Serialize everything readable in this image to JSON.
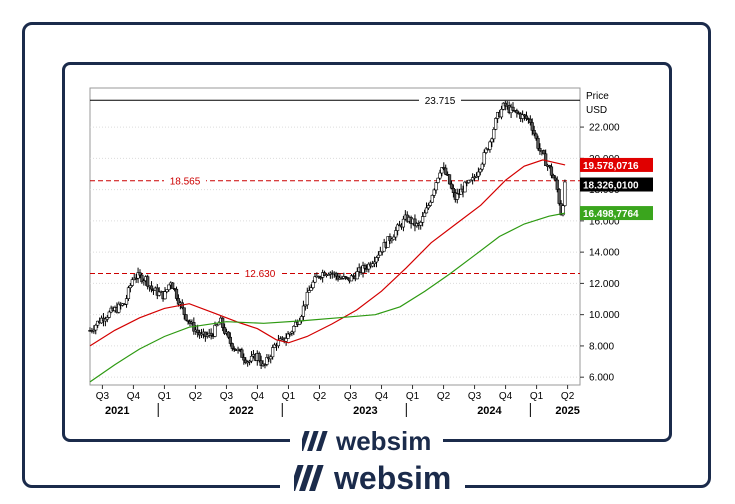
{
  "brand": {
    "logo_text": "websim"
  },
  "chart_data": {
    "type": "candlestick",
    "price_label": "Price",
    "currency_label": "USD",
    "ylim": [
      5.5,
      24.5
    ],
    "y_ticks": [
      "6.000",
      "8.000",
      "10.000",
      "12.000",
      "14.000",
      "16.000",
      "18.000",
      "20.000",
      "22.000"
    ],
    "x_quarters": [
      "Q3",
      "Q4",
      "Q1",
      "Q2",
      "Q3",
      "Q4",
      "Q1",
      "Q2",
      "Q3",
      "Q4",
      "Q1",
      "Q2",
      "Q3",
      "Q4",
      "Q1",
      "Q2"
    ],
    "x_years": [
      "2021",
      "2022",
      "2023",
      "2024",
      "2025"
    ],
    "x_start": 2021.5,
    "x_end": 2025.45,
    "horizontal_lines": [
      {
        "value": 23.715,
        "label": "23.715",
        "style": "solid",
        "color": "#000000"
      },
      {
        "value": 18.565,
        "label": "18.565",
        "style": "dashed",
        "color": "#cc0000"
      },
      {
        "value": 12.63,
        "label": "12.630",
        "style": "dashed",
        "color": "#cc0000"
      }
    ],
    "value_badges": [
      {
        "value": 19.578,
        "label": "19.578,0716",
        "bg": "#e00000",
        "fg": "#ffffff"
      },
      {
        "value": 18.326,
        "label": "18.326,0100",
        "bg": "#000000",
        "fg": "#ffffff"
      },
      {
        "value": 16.499,
        "label": "16.498,7764",
        "bg": "#3aa51d",
        "fg": "#ffffff"
      }
    ],
    "price_path": [
      [
        2021.5,
        9.0
      ],
      [
        2021.6,
        9.8
      ],
      [
        2021.7,
        10.3
      ],
      [
        2021.78,
        10.7
      ],
      [
        2021.85,
        12.5
      ],
      [
        2021.95,
        12.3
      ],
      [
        2022.0,
        11.6
      ],
      [
        2022.1,
        11.2
      ],
      [
        2022.15,
        12.2
      ],
      [
        2022.25,
        10.2
      ],
      [
        2022.32,
        9.3
      ],
      [
        2022.4,
        8.6
      ],
      [
        2022.48,
        8.7
      ],
      [
        2022.55,
        9.6
      ],
      [
        2022.62,
        8.3
      ],
      [
        2022.7,
        7.6
      ],
      [
        2022.78,
        7.0
      ],
      [
        2022.85,
        7.4
      ],
      [
        2022.9,
        6.6
      ],
      [
        2022.95,
        7.4
      ],
      [
        2023.0,
        8.2
      ],
      [
        2023.05,
        8.3
      ],
      [
        2023.12,
        8.9
      ],
      [
        2023.2,
        10.0
      ],
      [
        2023.28,
        11.8
      ],
      [
        2023.35,
        12.6
      ],
      [
        2023.42,
        12.8
      ],
      [
        2023.5,
        12.4
      ],
      [
        2023.58,
        12.2
      ],
      [
        2023.68,
        12.8
      ],
      [
        2023.75,
        13.2
      ],
      [
        2023.85,
        14.2
      ],
      [
        2023.95,
        15.2
      ],
      [
        2024.05,
        16.2
      ],
      [
        2024.15,
        15.6
      ],
      [
        2024.22,
        16.8
      ],
      [
        2024.28,
        18.3
      ],
      [
        2024.33,
        19.5
      ],
      [
        2024.38,
        18.8
      ],
      [
        2024.44,
        17.4
      ],
      [
        2024.52,
        18.2
      ],
      [
        2024.58,
        18.5
      ],
      [
        2024.66,
        19.8
      ],
      [
        2024.72,
        21.0
      ],
      [
        2024.78,
        22.6
      ],
      [
        2024.84,
        23.4
      ],
      [
        2024.9,
        23.0
      ],
      [
        2024.96,
        22.8
      ],
      [
        2025.05,
        22.4
      ],
      [
        2025.12,
        20.6
      ],
      [
        2025.2,
        19.4
      ],
      [
        2025.26,
        18.3
      ],
      [
        2025.3,
        16.4
      ],
      [
        2025.33,
        18.33
      ]
    ],
    "ma_red": [
      [
        2021.5,
        8.0
      ],
      [
        2021.7,
        9.0
      ],
      [
        2021.9,
        9.8
      ],
      [
        2022.1,
        10.4
      ],
      [
        2022.3,
        10.7
      ],
      [
        2022.5,
        10.1
      ],
      [
        2022.7,
        9.5
      ],
      [
        2022.85,
        9.1
      ],
      [
        2023.0,
        8.4
      ],
      [
        2023.1,
        8.2
      ],
      [
        2023.25,
        8.6
      ],
      [
        2023.45,
        9.4
      ],
      [
        2023.65,
        10.3
      ],
      [
        2023.85,
        11.5
      ],
      [
        2024.05,
        13.0
      ],
      [
        2024.25,
        14.6
      ],
      [
        2024.45,
        15.8
      ],
      [
        2024.65,
        17.0
      ],
      [
        2024.85,
        18.6
      ],
      [
        2025.0,
        19.5
      ],
      [
        2025.15,
        19.9
      ],
      [
        2025.33,
        19.58
      ]
    ],
    "ma_green": [
      [
        2021.5,
        5.7
      ],
      [
        2021.7,
        6.8
      ],
      [
        2021.9,
        7.8
      ],
      [
        2022.1,
        8.6
      ],
      [
        2022.3,
        9.2
      ],
      [
        2022.6,
        9.55
      ],
      [
        2022.9,
        9.45
      ],
      [
        2023.2,
        9.6
      ],
      [
        2023.5,
        9.8
      ],
      [
        2023.8,
        10.0
      ],
      [
        2024.0,
        10.5
      ],
      [
        2024.2,
        11.5
      ],
      [
        2024.4,
        12.6
      ],
      [
        2024.6,
        13.8
      ],
      [
        2024.8,
        15.0
      ],
      [
        2025.0,
        15.8
      ],
      [
        2025.2,
        16.3
      ],
      [
        2025.33,
        16.5
      ]
    ]
  }
}
